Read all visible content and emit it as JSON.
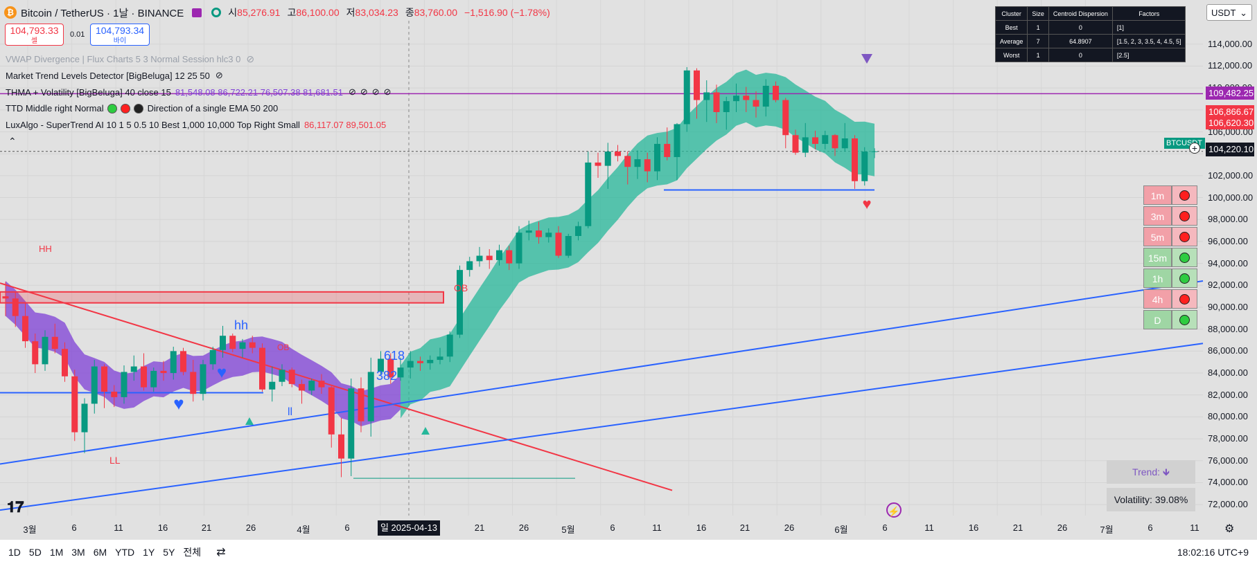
{
  "header": {
    "coin_glyph": "₿",
    "symbol": "Bitcoin / TetherUS · 1날 · BINANCE",
    "ohlc": [
      {
        "k": "시",
        "v": "85,276.91"
      },
      {
        "k": "고",
        "v": "86,100.00"
      },
      {
        "k": "저",
        "v": "83,034.23"
      },
      {
        "k": "종",
        "v": "83,760.00"
      }
    ],
    "change": "−1,516.90 (−1.78%)"
  },
  "trade": {
    "sell_price": "104,793.33",
    "sell_label": "셀",
    "spread": "0.01",
    "buy_price": "104,793.34",
    "buy_label": "바이"
  },
  "indicators": [
    {
      "name": "VWAP Divergence | Flux Charts 5 3 Normal Session hlc3 0",
      "value": ""
    },
    {
      "name": "Market Trend Levels Detector [BigBeluga] 12 25 50",
      "value": ""
    },
    {
      "name": "THMA + Volatility [BigBeluga] 40 close 15",
      "value": "81,548.08  86,722.21  76,507.38  81,681.51"
    },
    {
      "name": "TTD Middle right Normal",
      "value": "Direction of a single EMA 50 200"
    },
    {
      "name": "LuxAlgo - SuperTrend AI 10 1 5 0.5 10 Best 1,000 10,000 Top Right Small",
      "value": "86,117.07  89,501.05"
    }
  ],
  "cluster_table": {
    "headers": [
      "Cluster",
      "Size",
      "Centroid Dispersion",
      "Factors"
    ],
    "rows": [
      [
        "Best",
        "1",
        "0",
        "[1]"
      ],
      [
        "Average",
        "7",
        "64.8907",
        "[1.5, 2, 3, 3.5, 4, 4.5, 5]"
      ],
      [
        "Worst",
        "1",
        "0",
        "[2.5]"
      ]
    ]
  },
  "currency": "USDT",
  "price_axis": [
    "114,000.00",
    "112,000.00",
    "110,000.00",
    "106,000.00",
    "102,000.00",
    "100,000.00",
    "98,000.00",
    "96,000.00",
    "94,000.00",
    "92,000.00",
    "90,000.00",
    "88,000.00",
    "86,000.00",
    "84,000.00",
    "82,000.00",
    "80,000.00",
    "78,000.00",
    "76,000.00",
    "74,000.00",
    "72,000.00"
  ],
  "price_labels": {
    "purple": "109,482.25",
    "red1": "106,866.67",
    "red2": "106,620.30",
    "ticker": "BTCUSDT",
    "current": "104,220.10"
  },
  "time_axis": [
    "3월",
    "6",
    "11",
    "16",
    "21",
    "26",
    "4월",
    "6",
    "21",
    "26",
    "5월",
    "6",
    "11",
    "16",
    "21",
    "26",
    "6월",
    "6",
    "11",
    "16",
    "21",
    "26",
    "7월",
    "6",
    "11"
  ],
  "cursor_date": "일 2025-04-13",
  "timeframes": [
    {
      "tf": "1m",
      "state": "bear"
    },
    {
      "tf": "3m",
      "state": "bear"
    },
    {
      "tf": "5m",
      "state": "bear"
    },
    {
      "tf": "15m",
      "state": "bull"
    },
    {
      "tf": "1h",
      "state": "bull"
    },
    {
      "tf": "4h",
      "state": "bear"
    },
    {
      "tf": "D",
      "state": "bull"
    }
  ],
  "trend_label": "Trend: 🡻",
  "volatility_label": "Volatility: 39.08%",
  "chart_labels": {
    "ob1": "OB",
    "ob2": "OB",
    "hh": "HH",
    "hh2": "hh",
    "ll": "LL",
    "ll2": "ll",
    "fib1": "618",
    "fib2": "382"
  },
  "colors": {
    "up": "#089981",
    "down": "#f23645",
    "thma": "#7e3fd6",
    "band": "#26b79a",
    "trendline": "#2962ff",
    "redline": "#f23645"
  },
  "bottom_bar": {
    "ranges": [
      "1D",
      "5D",
      "1M",
      "3M",
      "6M",
      "YTD",
      "1Y",
      "5Y",
      "전체"
    ],
    "clock": "18:02:16 UTC+9"
  },
  "chart_data": {
    "type": "candlestick",
    "ylim": [
      71000,
      115500
    ],
    "price_ticks": [
      114000,
      112000,
      110000,
      108000,
      106000,
      104000,
      102000,
      100000,
      98000,
      96000,
      94000,
      92000,
      90000,
      88000,
      86000,
      84000,
      82000,
      80000,
      78000,
      76000,
      74000,
      72000
    ],
    "candles": [
      [
        91000,
        92300,
        89200,
        90800
      ],
      [
        90800,
        91400,
        88200,
        89200
      ],
      [
        89200,
        90400,
        86300,
        86900
      ],
      [
        86900,
        87600,
        84000,
        84800
      ],
      [
        84800,
        87900,
        84200,
        87300
      ],
      [
        87300,
        88500,
        85800,
        86200
      ],
      [
        86200,
        86800,
        83200,
        83700
      ],
      [
        83700,
        84300,
        77800,
        78600
      ],
      [
        78600,
        81700,
        76700,
        81200
      ],
      [
        81200,
        85200,
        80300,
        84600
      ],
      [
        84600,
        84800,
        80800,
        82300
      ],
      [
        82300,
        82900,
        80900,
        81800
      ],
      [
        81800,
        84700,
        81200,
        84100
      ],
      [
        84100,
        85600,
        83300,
        84600
      ],
      [
        84600,
        85800,
        82400,
        82700
      ],
      [
        82700,
        84500,
        82300,
        84200
      ],
      [
        84200,
        85100,
        83300,
        84000
      ],
      [
        84000,
        86400,
        83400,
        86000
      ],
      [
        86000,
        86300,
        83800,
        84100
      ],
      [
        84100,
        85200,
        81400,
        82100
      ],
      [
        82100,
        85200,
        81500,
        84800
      ],
      [
        84800,
        86400,
        84300,
        86100
      ],
      [
        86100,
        88300,
        85400,
        87400
      ],
      [
        87400,
        87600,
        85900,
        86200
      ],
      [
        86200,
        87100,
        85400,
        86800
      ],
      [
        86800,
        87400,
        85800,
        86300
      ],
      [
        86300,
        86700,
        82300,
        82500
      ],
      [
        82500,
        84600,
        81400,
        83200
      ],
      [
        83200,
        84800,
        82800,
        84300
      ],
      [
        84300,
        84500,
        82700,
        83000
      ],
      [
        83000,
        83400,
        81200,
        82400
      ],
      [
        82400,
        83500,
        82000,
        83300
      ],
      [
        83300,
        83900,
        82100,
        82700
      ],
      [
        82700,
        82800,
        77200,
        78400
      ],
      [
        78400,
        79900,
        74500,
        76200
      ],
      [
        76200,
        83500,
        74600,
        82600
      ],
      [
        82600,
        83600,
        78600,
        79600
      ],
      [
        79600,
        85400,
        78200,
        84100
      ],
      [
        84100,
        86000,
        83800,
        85300
      ],
      [
        85300,
        85800,
        83000,
        83600
      ],
      [
        83600,
        85400,
        83300,
        84500
      ],
      [
        84500,
        86000,
        83500,
        85100
      ],
      [
        85100,
        85500,
        84200,
        84900
      ],
      [
        84900,
        85600,
        84300,
        85200
      ],
      [
        85200,
        86300,
        84800,
        85500
      ],
      [
        85500,
        87800,
        85000,
        87500
      ],
      [
        87500,
        93800,
        87200,
        93400
      ],
      [
        93400,
        94600,
        92800,
        94200
      ],
      [
        94200,
        95500,
        93700,
        94700
      ],
      [
        94700,
        95300,
        93500,
        94300
      ],
      [
        94300,
        95700,
        93800,
        95200
      ],
      [
        95200,
        95600,
        93400,
        94000
      ],
      [
        94000,
        97400,
        93500,
        96800
      ],
      [
        96800,
        97900,
        96100,
        97000
      ],
      [
        97000,
        97800,
        95800,
        96400
      ],
      [
        96400,
        97200,
        95900,
        96800
      ],
      [
        96800,
        97400,
        94500,
        94700
      ],
      [
        94700,
        96700,
        94500,
        96500
      ],
      [
        96500,
        97800,
        96100,
        97400
      ],
      [
        97400,
        104200,
        97200,
        103200
      ],
      [
        103200,
        104100,
        101800,
        102900
      ],
      [
        102900,
        105000,
        100800,
        104200
      ],
      [
        104200,
        104800,
        103300,
        103800
      ],
      [
        103800,
        104200,
        101200,
        102800
      ],
      [
        102800,
        104300,
        101700,
        103500
      ],
      [
        103500,
        104100,
        101400,
        102400
      ],
      [
        102400,
        105500,
        101600,
        104900
      ],
      [
        104900,
        106400,
        103400,
        103700
      ],
      [
        103700,
        106800,
        101600,
        106700
      ],
      [
        106700,
        111900,
        106000,
        111600
      ],
      [
        111600,
        111800,
        107200,
        108900
      ],
      [
        108900,
        110700,
        106900,
        109600
      ],
      [
        109600,
        110300,
        106800,
        107800
      ],
      [
        107800,
        109200,
        106200,
        108800
      ],
      [
        108800,
        110400,
        107800,
        109300
      ],
      [
        109300,
        110100,
        107800,
        108900
      ],
      [
        108900,
        109700,
        107300,
        108300
      ],
      [
        108300,
        110800,
        107400,
        110200
      ],
      [
        110200,
        110600,
        108700,
        108900
      ],
      [
        108900,
        109100,
        104500,
        105700
      ],
      [
        105700,
        106200,
        103900,
        104100
      ],
      [
        104100,
        106800,
        103700,
        105500
      ],
      [
        105500,
        106100,
        104400,
        104900
      ],
      [
        104900,
        106100,
        104400,
        105700
      ],
      [
        105700,
        105800,
        103800,
        104500
      ],
      [
        104500,
        106800,
        104200,
        105400
      ],
      [
        105400,
        105700,
        100800,
        101500
      ],
      [
        101500,
        104600,
        101100,
        104200
      ],
      [
        104200,
        104500,
        103600,
        104220
      ]
    ]
  }
}
